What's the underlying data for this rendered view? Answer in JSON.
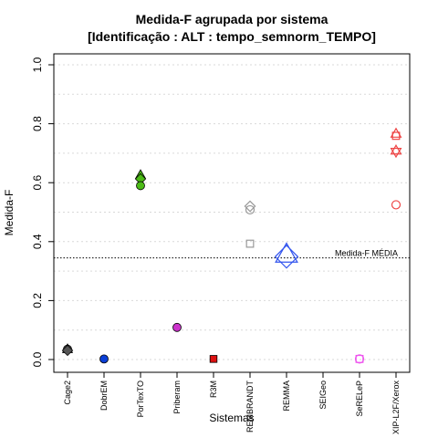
{
  "chart_data": {
    "type": "scatter",
    "title": "Medida-F agrupada por sistema",
    "subtitle": "[Identificação : ALT : tempo_semnorm_TEMPO]",
    "xlabel": "Sistemas",
    "ylabel": "Medida-F",
    "ylim": [
      0,
      1
    ],
    "y_ticks": [
      "0.0",
      "0.2",
      "0.4",
      "0.6",
      "0.8",
      "1.0"
    ],
    "grid": true,
    "categories": [
      "Cage2",
      "DobrEM",
      "PorTexTO",
      "Priberam",
      "R3M",
      "REMBRANDT",
      "REMMA",
      "SEIGeo",
      "SeRELeP",
      "XIP-L2F/Xerox"
    ],
    "reference_line": {
      "label": "Medida-F MÉDIA",
      "value": 0.345
    },
    "points": [
      {
        "category": "Cage2",
        "y": 0.036,
        "shape": "triangle",
        "color": "#555555",
        "filled": true
      },
      {
        "category": "Cage2",
        "y": 0.035,
        "shape": "circle",
        "color": "#555555",
        "filled": true
      },
      {
        "category": "Cage2",
        "y": 0.031,
        "shape": "diamond",
        "color": "#555555",
        "filled": true
      },
      {
        "category": "DobrEM",
        "y": 0.002,
        "shape": "circle",
        "color": "#0a3fd6",
        "filled": true
      },
      {
        "category": "PorTexTO",
        "y": 0.627,
        "shape": "triangle",
        "color": "#4cbb17",
        "filled": true
      },
      {
        "category": "PorTexTO",
        "y": 0.613,
        "shape": "diamond",
        "color": "#4cbb17",
        "filled": true
      },
      {
        "category": "PorTexTO",
        "y": 0.59,
        "shape": "circle",
        "color": "#4cbb17",
        "filled": true
      },
      {
        "category": "Priberam",
        "y": 0.109,
        "shape": "circle",
        "color": "#cc33cc",
        "filled": true
      },
      {
        "category": "R3M",
        "y": 0.002,
        "shape": "square",
        "color": "#dd1111",
        "filled": true
      },
      {
        "category": "REMBRANDT",
        "y": 0.52,
        "shape": "diamond",
        "color": "#999999",
        "filled": false
      },
      {
        "category": "REMBRANDT",
        "y": 0.508,
        "shape": "circle",
        "color": "#999999",
        "filled": false
      },
      {
        "category": "REMBRANDT",
        "y": 0.393,
        "shape": "square",
        "color": "#999999",
        "filled": false
      },
      {
        "category": "REMMA",
        "y": 0.358,
        "shape": "triangle",
        "color": "#3355ee",
        "filled": false,
        "size": 2.2
      },
      {
        "category": "REMMA",
        "y": 0.349,
        "shape": "diamond",
        "color": "#3355ee",
        "filled": false,
        "size": 2.2
      },
      {
        "category": "SeRELeP",
        "y": 0.002,
        "shape": "square",
        "color": "#ee55ee",
        "filled": false
      },
      {
        "category": "SeRELeP",
        "y": 0.002,
        "shape": "circle",
        "color": "#ee55ee",
        "filled": false
      },
      {
        "category": "XIP-L2F/Xerox",
        "y": 0.759,
        "shape": "square",
        "color": "#ee4444",
        "filled": false
      },
      {
        "category": "XIP-L2F/Xerox",
        "y": 0.767,
        "shape": "triangle",
        "color": "#ee4444",
        "filled": false
      },
      {
        "category": "XIP-L2F/Xerox",
        "y": 0.71,
        "shape": "triangle",
        "color": "#ee4444",
        "filled": false
      },
      {
        "category": "XIP-L2F/Xerox",
        "y": 0.704,
        "shape": "triangle-down",
        "color": "#ee4444",
        "filled": false
      },
      {
        "category": "XIP-L2F/Xerox",
        "y": 0.525,
        "shape": "circle",
        "color": "#ee4444",
        "filled": false
      }
    ]
  }
}
